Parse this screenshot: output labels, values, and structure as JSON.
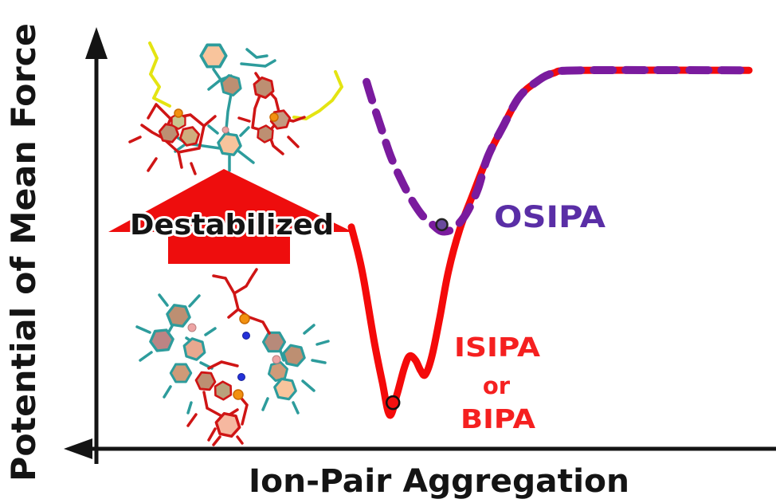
{
  "figure": {
    "y_axis_label": "Potential of Mean Force",
    "x_axis_label": "Ion-Pair Aggregation",
    "destabilized_label": "Destabilized",
    "curve_labels": {
      "osipa": "OSIPA",
      "isipa": "ISIPA",
      "or": "or",
      "bipa": "BIPA"
    }
  },
  "colors": {
    "axis": "#141414",
    "red_curve": "#f40a0a",
    "purple_curve": "#7a1b9e",
    "osipa_text": "#5a2ea6",
    "red_text": "#f52020",
    "destabilized_fill": "#141414",
    "destabilized_outline": "#ffffff",
    "arrow_red": "#ee0d0d",
    "molecule": {
      "red_sticks": "#cf1515",
      "teal_sticks": "#2d9c9c",
      "yellow_chain": "#e4e412",
      "orange_atom": "#f29110",
      "blue_atom": "#2431d8",
      "pink_atom": "#eda4a4",
      "ring_peach": "#f8c49c",
      "ring_tan": "#bd8f72"
    }
  },
  "chart_data": {
    "type": "line",
    "title": "",
    "xlabel": "Ion-Pair Aggregation",
    "ylabel": "Potential of Mean Force",
    "axes_have_numeric_ticks": false,
    "xlim": [
      0,
      1
    ],
    "ylim": [
      0,
      1
    ],
    "grid": false,
    "legend_position": "inline-annotations",
    "series": [
      {
        "name": "ISIPA or BIPA",
        "color": "#f40a0a",
        "style": "solid",
        "stroke_width": 9,
        "points": [
          [
            0.386,
            0.553
          ],
          [
            0.397,
            0.483
          ],
          [
            0.405,
            0.42
          ],
          [
            0.421,
            0.264
          ],
          [
            0.433,
            0.165
          ],
          [
            0.444,
            0.084
          ],
          [
            0.455,
            0.135
          ],
          [
            0.466,
            0.201
          ],
          [
            0.474,
            0.231
          ],
          [
            0.483,
            0.221
          ],
          [
            0.491,
            0.195
          ],
          [
            0.498,
            0.185
          ],
          [
            0.508,
            0.231
          ],
          [
            0.52,
            0.328
          ],
          [
            0.533,
            0.443
          ],
          [
            0.55,
            0.547
          ],
          [
            0.568,
            0.626
          ],
          [
            0.592,
            0.726
          ],
          [
            0.616,
            0.805
          ],
          [
            0.64,
            0.877
          ],
          [
            0.666,
            0.915
          ],
          [
            0.692,
            0.937
          ],
          [
            0.735,
            0.944
          ],
          [
            0.988,
            0.944
          ]
        ],
        "minimum_marker": {
          "x": 0.449,
          "y": 0.115,
          "radius": 8,
          "fill": "#f21010",
          "stroke": "#111111"
        }
      },
      {
        "name": "OSIPA",
        "color": "#7a1b9e",
        "style": "dashed",
        "stroke_width": 10,
        "points": [
          [
            0.409,
            0.915
          ],
          [
            0.419,
            0.861
          ],
          [
            0.431,
            0.801
          ],
          [
            0.445,
            0.732
          ],
          [
            0.461,
            0.672
          ],
          [
            0.477,
            0.622
          ],
          [
            0.493,
            0.583
          ],
          [
            0.509,
            0.559
          ],
          [
            0.522,
            0.543
          ],
          [
            0.536,
            0.545
          ],
          [
            0.549,
            0.562
          ],
          [
            0.563,
            0.595
          ],
          [
            0.578,
            0.65
          ],
          [
            0.592,
            0.726
          ],
          [
            0.616,
            0.805
          ],
          [
            0.64,
            0.877
          ],
          [
            0.666,
            0.915
          ],
          [
            0.692,
            0.937
          ],
          [
            0.735,
            0.944
          ],
          [
            0.988,
            0.944
          ]
        ],
        "minimum_marker": {
          "x": 0.523,
          "y": 0.559,
          "radius": 7,
          "fill": "#6a4a9e",
          "stroke": "#222222"
        }
      }
    ]
  }
}
